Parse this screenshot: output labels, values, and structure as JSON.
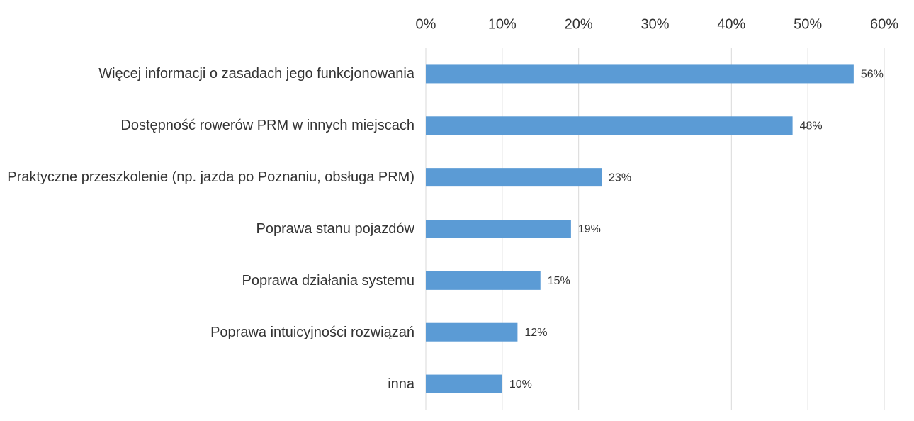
{
  "chart_data": {
    "type": "bar",
    "orientation": "horizontal",
    "categories": [
      "Więcej informacji o zasadach jego funkcjonowania",
      "Dostępność rowerów PRM w innych miejscach",
      "Praktyczne przeszkolenie (np. jazda po Poznaniu, obsługa PRM)",
      "Poprawa stanu pojazdów",
      "Poprawa działania systemu",
      "Poprawa intuicyjności rozwiązań",
      "inna"
    ],
    "values": [
      56,
      48,
      23,
      19,
      15,
      12,
      10
    ],
    "value_labels": [
      "56%",
      "48%",
      "23%",
      "19%",
      "15%",
      "12%",
      "10%"
    ],
    "color": "#5b9bd5",
    "xlim": [
      0,
      60
    ],
    "xticks": [
      {
        "value": 0,
        "label": "0%"
      },
      {
        "value": 10,
        "label": "10%"
      },
      {
        "value": 20,
        "label": "20%"
      },
      {
        "value": 30,
        "label": "30%"
      },
      {
        "value": 40,
        "label": "40%"
      },
      {
        "value": 50,
        "label": "50%"
      },
      {
        "value": 60,
        "label": "60%"
      }
    ],
    "grid": true
  }
}
